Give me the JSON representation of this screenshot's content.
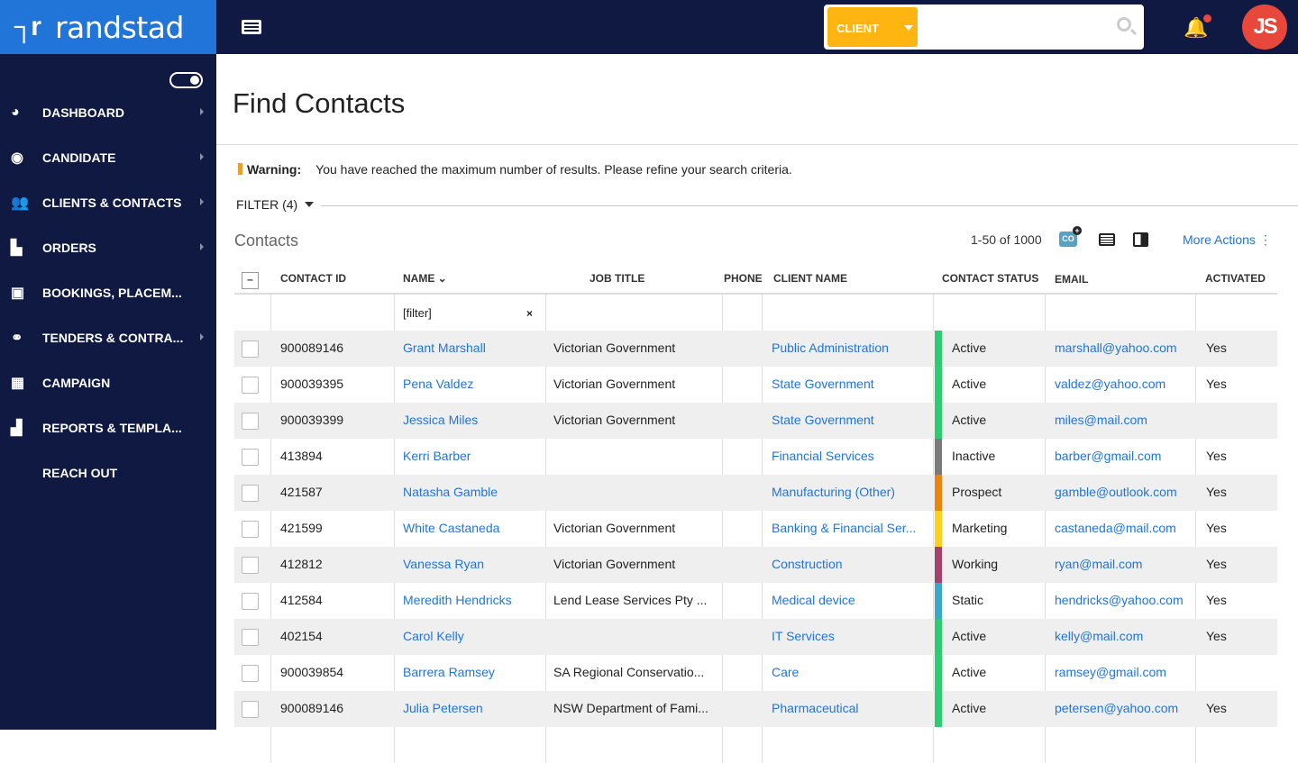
{
  "brand": {
    "name": "randstad"
  },
  "search": {
    "scope": "CLIENT",
    "value": ""
  },
  "user": {
    "initials": "JS"
  },
  "sidebar": {
    "items": [
      {
        "label": "DASHBOARD",
        "icon": "dashboard-icon",
        "glyph": "◕",
        "arrow": true
      },
      {
        "label": "CANDIDATE",
        "icon": "user-icon",
        "glyph": "◉",
        "arrow": true
      },
      {
        "label": "CLIENTS & CONTACTS",
        "icon": "users-icon",
        "glyph": "👥",
        "arrow": true
      },
      {
        "label": "ORDERS",
        "icon": "document-icon",
        "glyph": "▙",
        "arrow": true
      },
      {
        "label": "BOOKINGS, PLACEM...",
        "icon": "contact-book-icon",
        "glyph": "▣",
        "arrow": false
      },
      {
        "label": "TENDERS & CONTRA...",
        "icon": "handshake-icon",
        "glyph": "⚭",
        "arrow": true
      },
      {
        "label": "CAMPAIGN",
        "icon": "table-icon",
        "glyph": "▦",
        "arrow": false
      },
      {
        "label": "REPORTS & TEMPLA...",
        "icon": "bar-chart-icon",
        "glyph": "▟",
        "arrow": false
      },
      {
        "label": "REACH OUT",
        "icon": "",
        "glyph": "",
        "arrow": false
      }
    ]
  },
  "page": {
    "title": "Find Contacts",
    "warning": {
      "label": "Warning:",
      "text": "You have reached the maximum number of results.  Please refine your search criteria."
    },
    "filter": "FILTER (4)",
    "section": "Contacts",
    "count": "1-50 of 1000",
    "co_icon": "CO",
    "more_actions": "More Actions ⋮"
  },
  "table": {
    "headers": {
      "contact_id": "CONTACT ID",
      "name": "NAME ⌄",
      "job_title": "JOB TITLE",
      "phone": "PHONE",
      "client_name": "CLIENT NAME",
      "status": "CONTACT STATUS",
      "email": "EMAIL",
      "activated": "ACTIVATED"
    },
    "name_filter": "[filter]",
    "status_colors": {
      "Active": "#2ecc71",
      "Inactive": "#7a7a7a",
      "Prospect": "#e8850f",
      "Marketing": "#fcd21f",
      "Working": "#a3426b",
      "Static": "#3ba8c8"
    },
    "rows": [
      {
        "id": "900089146",
        "name": "Grant Marshall",
        "job": "Victorian Government",
        "phone": "",
        "client": "Public Administration",
        "status": "Active",
        "email": "marshall@yahoo.com",
        "activated": "Yes"
      },
      {
        "id": "900039395",
        "name": "Pena Valdez",
        "job": "Victorian Government",
        "phone": "",
        "client": "State Government",
        "status": "Active",
        "email": "valdez@yahoo.com",
        "activated": "Yes"
      },
      {
        "id": "900039399",
        "name": "Jessica Miles",
        "job": "Victorian Government",
        "phone": "",
        "client": "State Government",
        "status": "Active",
        "email": "miles@mail.com",
        "activated": ""
      },
      {
        "id": "413894",
        "name": "Kerri Barber",
        "job": "",
        "phone": "",
        "client": "Financial Services",
        "status": "Inactive",
        "email": "barber@gmail.com",
        "activated": "Yes"
      },
      {
        "id": "421587",
        "name": "Natasha Gamble",
        "job": "",
        "phone": "",
        "client": "Manufacturing (Other)",
        "status": "Prospect",
        "email": "gamble@outlook.com",
        "activated": "Yes"
      },
      {
        "id": "421599",
        "name": "White Castaneda",
        "job": "Victorian Government",
        "phone": "",
        "client": "Banking & Financial Ser...",
        "status": "Marketing",
        "email": "castaneda@mail.com",
        "activated": "Yes"
      },
      {
        "id": "412812",
        "name": "Vanessa Ryan",
        "job": "Victorian Government",
        "phone": "",
        "client": "Construction",
        "status": "Working",
        "email": "ryan@mail.com",
        "activated": "Yes"
      },
      {
        "id": "412584",
        "name": "Meredith Hendricks",
        "job": "Lend Lease Services Pty ...",
        "phone": "",
        "client": "Medical device",
        "status": "Static",
        "email": "hendricks@yahoo.com",
        "activated": "Yes"
      },
      {
        "id": "402154",
        "name": "Carol Kelly",
        "job": "",
        "phone": "",
        "client": "IT Services",
        "status": "Active",
        "email": "kelly@mail.com",
        "activated": "Yes"
      },
      {
        "id": "900039854",
        "name": "Barrera Ramsey",
        "job": "SA Regional Conservatio...",
        "phone": "",
        "client": "Care",
        "status": "Active",
        "email": "ramsey@gmail.com",
        "activated": ""
      },
      {
        "id": "900089146",
        "name": "Julia Petersen",
        "job": "NSW Department of Fami...",
        "phone": "",
        "client": "Pharmaceutical",
        "status": "Active",
        "email": "petersen@yahoo.com",
        "activated": "Yes"
      }
    ]
  }
}
